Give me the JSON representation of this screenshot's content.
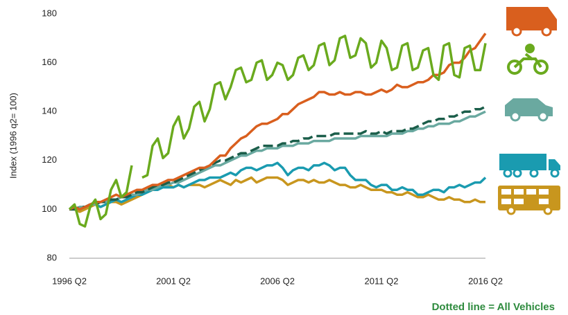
{
  "chart_data": {
    "type": "line",
    "y_label": "Index (1996 q2= 100)",
    "note": "Dotted line = All Vehicles",
    "categories": [
      "1996 Q2",
      null,
      null,
      null,
      null,
      null,
      null,
      null,
      null,
      null,
      null,
      null,
      null,
      null,
      null,
      null,
      null,
      null,
      null,
      null,
      "2001 Q2",
      null,
      null,
      null,
      null,
      null,
      null,
      null,
      null,
      null,
      null,
      null,
      null,
      null,
      null,
      null,
      null,
      null,
      null,
      null,
      "2006 Q2",
      null,
      null,
      null,
      null,
      null,
      null,
      null,
      null,
      null,
      null,
      null,
      null,
      null,
      null,
      null,
      null,
      null,
      null,
      null,
      "2011 Q2",
      null,
      null,
      null,
      null,
      null,
      null,
      null,
      null,
      null,
      null,
      null,
      null,
      null,
      null,
      null,
      null,
      null,
      null,
      null,
      "2016 Q2"
    ],
    "ylim": [
      80,
      180
    ],
    "yticks": [
      80,
      100,
      120,
      140,
      160,
      180
    ],
    "series": [
      {
        "color": "#c8961e",
        "values": [
          100,
          100,
          99,
          100,
          101,
          102,
          101,
          102,
          103,
          103,
          102,
          103,
          104,
          105,
          106,
          107,
          108,
          109,
          110,
          110,
          109,
          110,
          109,
          110,
          110,
          110,
          109,
          110,
          111,
          112,
          111,
          110,
          112,
          111,
          112,
          113,
          111,
          112,
          113,
          113,
          113,
          112,
          110,
          111,
          112,
          112,
          111,
          112,
          111,
          111,
          112,
          111,
          110,
          110,
          109,
          109,
          110,
          109,
          108,
          108,
          108,
          107,
          107,
          106,
          106,
          107,
          106,
          105,
          105,
          106,
          105,
          104,
          104,
          105,
          104,
          104,
          103,
          103,
          104,
          103,
          103
        ]
      },
      {
        "color": "#1a9bb0",
        "values": [
          100,
          101,
          100,
          101,
          102,
          102,
          101,
          102,
          103,
          104,
          103,
          104,
          105,
          106,
          106,
          107,
          108,
          108,
          109,
          109,
          109,
          110,
          109,
          110,
          111,
          112,
          112,
          113,
          113,
          113,
          114,
          115,
          114,
          116,
          117,
          117,
          116,
          117,
          118,
          118,
          119,
          117,
          114,
          116,
          117,
          117,
          116,
          118,
          118,
          119,
          118,
          116,
          117,
          117,
          114,
          112,
          112,
          112,
          110,
          109,
          110,
          110,
          108,
          108,
          109,
          108,
          108,
          106,
          106,
          107,
          108,
          108,
          107,
          109,
          109,
          110,
          109,
          110,
          111,
          111,
          113
        ]
      },
      {
        "color": "#6aa9a0",
        "values": [
          100,
          100,
          101,
          101,
          102,
          102,
          103,
          103,
          104,
          104,
          105,
          105,
          106,
          106,
          107,
          108,
          108,
          109,
          110,
          110,
          111,
          111,
          112,
          113,
          114,
          115,
          116,
          117,
          118,
          118,
          119,
          120,
          121,
          122,
          122,
          123,
          124,
          124,
          125,
          125,
          125,
          126,
          126,
          126,
          127,
          127,
          127,
          128,
          128,
          128,
          128,
          129,
          129,
          129,
          129,
          129,
          130,
          130,
          130,
          130,
          130,
          130,
          131,
          131,
          131,
          132,
          132,
          133,
          133,
          134,
          134,
          135,
          135,
          135,
          136,
          136,
          137,
          138,
          138,
          139,
          140
        ]
      },
      {
        "color": "#1b5e4a",
        "dashed": true,
        "values": [
          100,
          100,
          101,
          101,
          102,
          102,
          103,
          103,
          104,
          104,
          105,
          105,
          106,
          107,
          107,
          108,
          109,
          110,
          110,
          111,
          111,
          112,
          113,
          114,
          115,
          116,
          117,
          118,
          119,
          120,
          120,
          121,
          122,
          123,
          123,
          124,
          125,
          126,
          126,
          126,
          126,
          127,
          127,
          128,
          128,
          129,
          129,
          130,
          130,
          130,
          130,
          131,
          131,
          131,
          131,
          131,
          131,
          132,
          131,
          131,
          132,
          131,
          132,
          132,
          132,
          133,
          133,
          134,
          135,
          136,
          136,
          137,
          137,
          138,
          138,
          139,
          140,
          140,
          141,
          141,
          142
        ]
      },
      {
        "color": "#d95f1e",
        "values": [
          100,
          101,
          100,
          101,
          102,
          103,
          103,
          104,
          105,
          106,
          105,
          106,
          107,
          108,
          108,
          109,
          110,
          110,
          111,
          112,
          112,
          113,
          114,
          115,
          116,
          117,
          117,
          118,
          120,
          122,
          122,
          125,
          127,
          129,
          130,
          132,
          134,
          135,
          135,
          136,
          137,
          139,
          139,
          141,
          143,
          144,
          145,
          146,
          148,
          148,
          147,
          147,
          148,
          147,
          147,
          148,
          148,
          147,
          147,
          148,
          149,
          148,
          149,
          151,
          150,
          150,
          151,
          152,
          152,
          153,
          155,
          155,
          156,
          159,
          160,
          160,
          162,
          165,
          166,
          169,
          172
        ]
      },
      {
        "color": "#6aaa1e",
        "values": [
          100,
          102,
          94,
          93,
          101,
          104,
          96,
          98,
          108,
          112,
          105,
          107,
          118,
          null,
          113,
          114,
          126,
          129,
          121,
          123,
          134,
          138,
          129,
          133,
          142,
          144,
          136,
          141,
          151,
          152,
          145,
          150,
          157,
          158,
          152,
          153,
          160,
          161,
          153,
          155,
          160,
          159,
          153,
          155,
          162,
          163,
          157,
          159,
          167,
          168,
          159,
          161,
          170,
          171,
          162,
          163,
          170,
          168,
          158,
          160,
          169,
          166,
          157,
          158,
          167,
          168,
          157,
          158,
          165,
          166,
          155,
          153,
          167,
          168,
          155,
          154,
          166,
          167,
          157,
          157,
          168
        ]
      }
    ]
  }
}
